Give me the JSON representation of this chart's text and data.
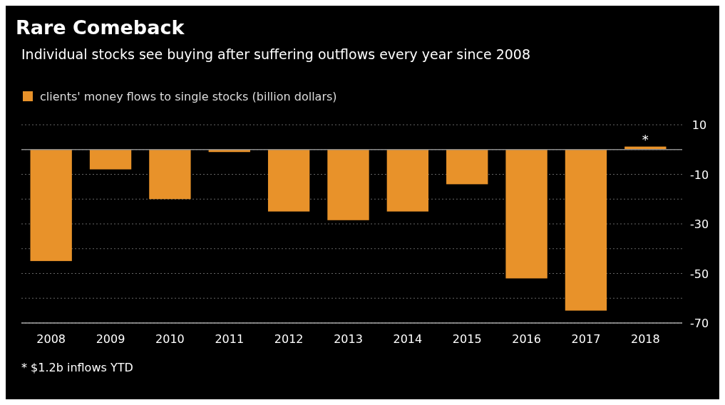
{
  "chart_data": {
    "type": "bar",
    "title": "Rare Comeback",
    "subtitle": "Individual stocks see buying after suffering outflows every year since 2008",
    "categories": [
      "2008",
      "2009",
      "2010",
      "2011",
      "2012",
      "2013",
      "2014",
      "2015",
      "2016",
      "2017",
      "2018"
    ],
    "series": [
      {
        "name": "clients' money flows to single stocks (billion dollars)",
        "color": "#e8922a",
        "values": [
          -45,
          -8,
          -20,
          -1,
          -25,
          -28.5,
          -25,
          -14,
          -52,
          -65,
          1.2
        ]
      }
    ],
    "ylim": [
      -70,
      10
    ],
    "yticks": [
      10,
      {
        "value": 0,
        "label": null
      },
      -10,
      {
        "value": -20,
        "label": null
      },
      -30,
      {
        "value": -40,
        "label": null
      },
      -50,
      {
        "value": -60,
        "label": null
      },
      -70
    ],
    "grid": "y",
    "legend": "top left",
    "ref_lines": [
      {
        "axis": "y",
        "value": 0,
        "color": "#8c8c8c"
      }
    ],
    "annotations": [
      {
        "text": "*",
        "x": "2018",
        "y": 1.2
      },
      "* $1.2b inflows YTD"
    ]
  }
}
